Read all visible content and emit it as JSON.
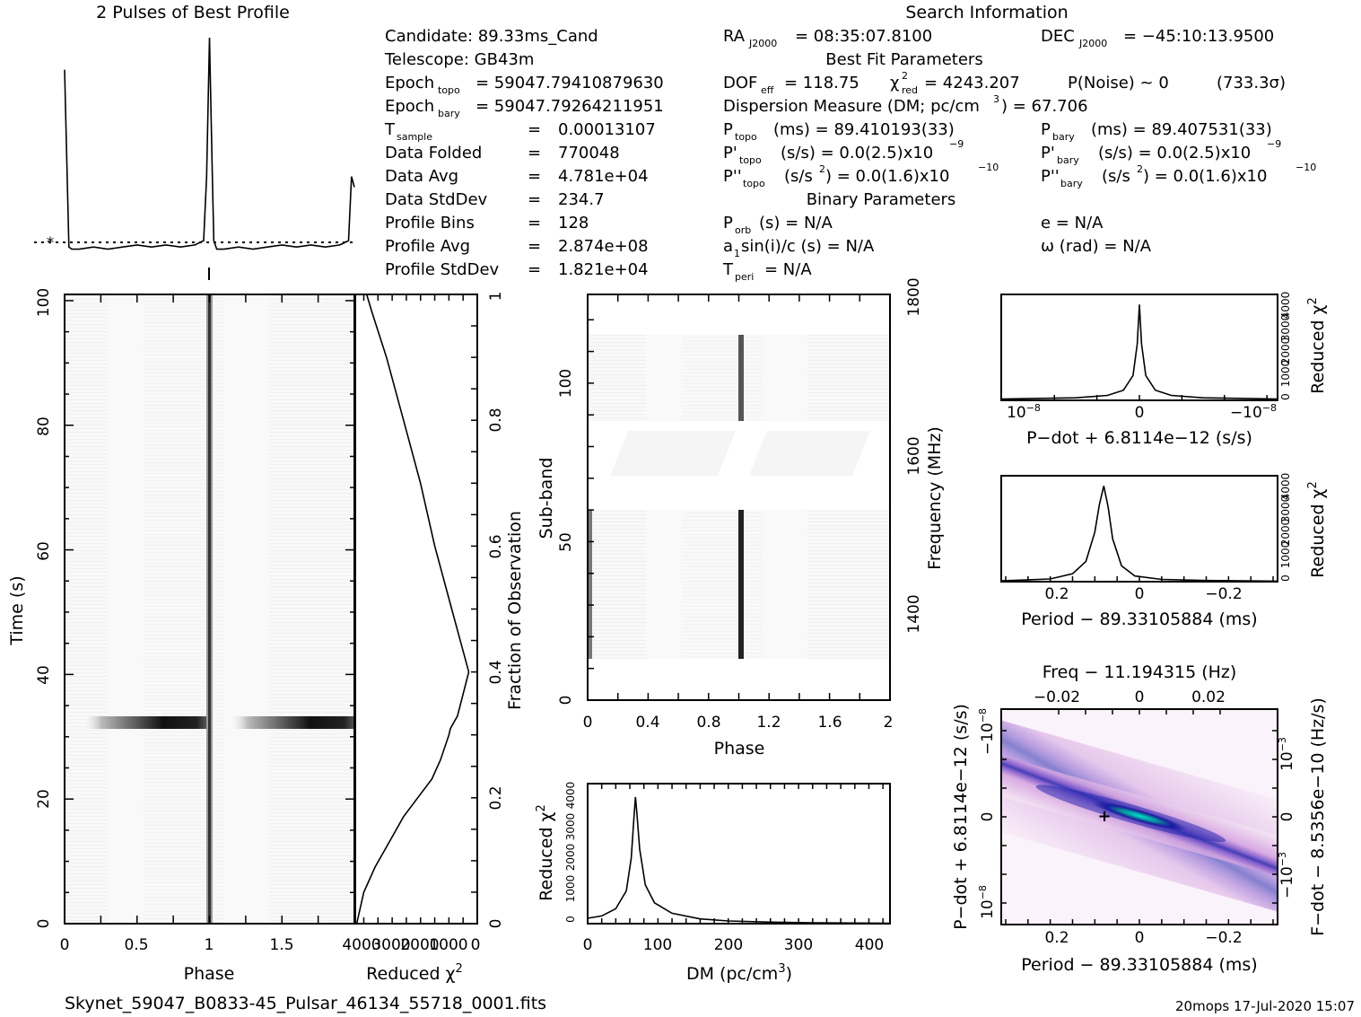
{
  "header": {
    "profile_title": "2 Pulses of Best Profile",
    "search_title": "Search Information",
    "best_fit_title": "Best Fit Parameters",
    "binary_title": "Binary Parameters"
  },
  "info": {
    "candidate": "Candidate:  89.33ms_Cand",
    "telescope": "Telescope:  GB43m",
    "epoch_topo_lbl": "Epoch",
    "epoch_topo_sub": "topo",
    "epoch_topo_val": "= 59047.79410879630",
    "epoch_bary_lbl": "Epoch",
    "epoch_bary_sub": "bary",
    "epoch_bary_val": "= 59047.79264211951",
    "tsample_lbl": "T",
    "tsample_sub": "sample",
    "tsample_eq": "=",
    "tsample_val": "0.00013107",
    "data_folded_lbl": "Data Folded",
    "data_folded_eq": "=",
    "data_folded_val": "770048",
    "data_avg_lbl": "Data Avg",
    "data_avg_eq": "=",
    "data_avg_val": "4.781e+04",
    "data_std_lbl": "Data StdDev",
    "data_std_eq": "=",
    "data_std_val": "234.7",
    "prof_bins_lbl": "Profile Bins",
    "prof_bins_eq": "=",
    "prof_bins_val": "128",
    "prof_avg_lbl": "Profile Avg",
    "prof_avg_eq": "=",
    "prof_avg_val": "2.874e+08",
    "prof_std_lbl": "Profile StdDev",
    "prof_std_eq": "=",
    "prof_std_val": "1.821e+04",
    "ra_lbl": "RA",
    "ra_sub": "J2000",
    "ra_val": "= 08:35:07.8100",
    "dec_lbl": "DEC",
    "dec_sub": "J2000",
    "dec_val": "= −45:10:13.9500",
    "dof_lbl": "DOF",
    "dof_sub": "eff",
    "dof_val": "= 118.75",
    "chi_lbl": "χ",
    "chi_sup": "2",
    "chi_sub": "red",
    "chi_val": "= 4243.207",
    "pnoise": "P(Noise) ~ 0",
    "sigma": "(733.3σ)",
    "dm_line": "Dispersion Measure (DM; pc/cm",
    "dm_sup": "3",
    "dm_val": ") = 67.706",
    "ptopo_lbl": "P",
    "ptopo_sub": "topo",
    "ptopo_val": "(ms)  =  89.410193(33)",
    "pbary_lbl": "P",
    "pbary_sub": "bary",
    "pbary_val": "(ms)  =  89.407531(33)",
    "pdtopo_lbl": "P'",
    "pdtopo_sub": "topo",
    "pdtopo_val": "(s/s) = 0.0(2.5)x10",
    "pdtopo_exp": "−9",
    "pdbary_lbl": "P'",
    "pdbary_sub": "bary",
    "pdbary_val": "(s/s) = 0.0(2.5)x10",
    "pdbary_exp": "−9",
    "pddtopo_lbl": "P''",
    "pddtopo_sub": "topo",
    "pddtopo_val": "(s/s",
    "pddtopo_sup": "2",
    "pddtopo_val2": ") = 0.0(1.6)x10",
    "pddtopo_exp": "−10",
    "pddbary_lbl": "P''",
    "pddbary_sub": "bary",
    "pddbary_val": "(s/s",
    "pddbary_sup": "2",
    "pddbary_val2": ") = 0.0(1.6)x10",
    "pddbary_exp": "−10",
    "porb_lbl": "P",
    "porb_sub": "orb",
    "porb_val": "(s) = N/A",
    "e_val": "e = N/A",
    "a1_lbl": "a",
    "a1_sub": "1",
    "a1_val": "sin(i)/c (s) = N/A",
    "omega_val": "ω (rad) = N/A",
    "tperi_lbl": "T",
    "tperi_sub": "peri",
    "tperi_val": "= N/A"
  },
  "footer": {
    "filename": "Skynet_59047_B0833-45_Pulsar_46134_55718_0001.fits",
    "stamp": "20mops  17-Jul-2020 15:07"
  },
  "chart_data": [
    {
      "type": "line",
      "panel": "profile",
      "title": "2 Pulses of Best Profile",
      "x": [
        0.0,
        0.03,
        0.05,
        0.1,
        0.2,
        0.3,
        0.4,
        0.5,
        0.6,
        0.7,
        0.8,
        0.9,
        0.96,
        0.98,
        1.0,
        1.02,
        1.03,
        1.05,
        1.1,
        1.2,
        1.3,
        1.4,
        1.5,
        1.6,
        1.7,
        1.8,
        1.9,
        1.96,
        1.98,
        2.0
      ],
      "y_relative": [
        0.85,
        0.02,
        0.01,
        0.01,
        0.02,
        0.01,
        0.02,
        0.03,
        0.02,
        0.03,
        0.02,
        0.03,
        0.05,
        0.35,
        1.0,
        0.35,
        0.05,
        0.01,
        0.01,
        0.02,
        0.01,
        0.02,
        0.03,
        0.02,
        0.03,
        0.02,
        0.03,
        0.05,
        0.35,
        0.3
      ]
    },
    {
      "type": "heatmap",
      "panel": "time-phase",
      "xlabel": "Phase",
      "ylabel": "Time (s)",
      "xticks": [
        "0",
        "0.5",
        "1",
        "1.5"
      ],
      "yticks": [
        "0",
        "20",
        "40",
        "60",
        "80",
        "100"
      ],
      "xlim": [
        0,
        2
      ],
      "ylim": [
        0,
        101
      ],
      "dark_band_time": 32,
      "pulse_phase": [
        1.0
      ]
    },
    {
      "type": "line",
      "panel": "reduced-chi2-vs-fraction",
      "xlabel": "Reduced χ2",
      "ylabel": "Fraction of Observation",
      "xticks": [
        "4000",
        "3000",
        "2000",
        "1000",
        "0"
      ],
      "yticks": [
        "0",
        "0.2",
        "0.4",
        "0.6",
        "0.8",
        "1"
      ],
      "xlim": [
        4300,
        0
      ],
      "ylim": [
        0,
        1
      ],
      "x": [
        3900,
        3700,
        3200,
        2600,
        2000,
        1500,
        900,
        300,
        700,
        950,
        1000,
        1300,
        1600,
        2100,
        2600,
        3100,
        3600,
        4000,
        4250
      ],
      "y": [
        1.0,
        0.97,
        0.9,
        0.8,
        0.7,
        0.6,
        0.5,
        0.4,
        0.33,
        0.31,
        0.3,
        0.26,
        0.23,
        0.2,
        0.17,
        0.13,
        0.09,
        0.05,
        0.0
      ]
    },
    {
      "type": "heatmap",
      "panel": "subband-phase",
      "xlabel": "Phase",
      "ylabel": "Sub-band",
      "y2label": "Frequency (MHz)",
      "xticks": [
        "0",
        "0.4",
        "0.8",
        "1.2",
        "1.6",
        "2"
      ],
      "yticks": [
        "0",
        "50",
        "100"
      ],
      "y2ticks": [
        "1400",
        "1600",
        "1800"
      ],
      "xlim": [
        0,
        2
      ],
      "ylim": [
        0,
        128
      ],
      "pulse_phase": 1.02,
      "blank_subbands": [
        59,
        88
      ]
    },
    {
      "type": "line",
      "panel": "dm-curve",
      "xlabel": "DM (pc/cm3)",
      "ylabel": "Reduced χ2",
      "xticks": [
        "0",
        "100",
        "200",
        "300",
        "400"
      ],
      "yticks": [
        "0",
        "1000",
        "2000",
        "3000",
        "4000"
      ],
      "xlim": [
        0,
        430
      ],
      "ylim": [
        0,
        4700
      ],
      "x": [
        0,
        20,
        40,
        55,
        62,
        66,
        68,
        70,
        74,
        82,
        95,
        120,
        160,
        200,
        260,
        320,
        380,
        430
      ],
      "y": [
        180,
        260,
        500,
        1100,
        2200,
        3600,
        4250,
        3700,
        2500,
        1300,
        700,
        350,
        160,
        90,
        50,
        30,
        20,
        15
      ]
    },
    {
      "type": "line",
      "panel": "pdot-curve",
      "xlabel": "P−dot + 6.8114e−12 (s/s)",
      "ylabel": "Reduced χ2",
      "xticks": [
        "10−8",
        "0",
        "−10−8"
      ],
      "yticks": [
        "0",
        "1000",
        "2000",
        "3000",
        "4000"
      ],
      "xlim": [
        1.3e-08,
        -1.3e-08
      ],
      "ylim": [
        0,
        4700
      ],
      "x": [
        1.3e-08,
        6e-09,
        3e-09,
        1.5e-09,
        6e-10,
        2e-10,
        0,
        -2e-10,
        -6e-10,
        -1.5e-09,
        -3e-09,
        -6e-09,
        -1.3e-08
      ],
      "y": [
        60,
        110,
        220,
        450,
        1100,
        2500,
        4250,
        2500,
        1100,
        450,
        220,
        110,
        60
      ]
    },
    {
      "type": "line",
      "panel": "period-curve",
      "xlabel": "Period − 89.33105884 (ms)",
      "ylabel": "Reduced χ2",
      "xticks": [
        "0.2",
        "0",
        "−0.2"
      ],
      "yticks": [
        "0",
        "1000",
        "2000",
        "3000",
        "4000"
      ],
      "xlim": [
        0.31,
        -0.31
      ],
      "ylim": [
        0,
        4700
      ],
      "x": [
        0.31,
        0.2,
        0.15,
        0.12,
        0.1,
        0.09,
        0.08,
        0.07,
        0.06,
        0.04,
        0.01,
        -0.05,
        -0.15,
        -0.31
      ],
      "y": [
        35,
        120,
        350,
        900,
        2200,
        3400,
        4250,
        3300,
        1900,
        700,
        250,
        100,
        50,
        25
      ]
    },
    {
      "type": "heatmap",
      "panel": "p-pdot",
      "title": "Freq − 11.194315 (Hz)",
      "xlabel": "Period − 89.33105884 (ms)",
      "ylabel": "P−dot + 6.8114e−12 (s/s)",
      "y2label": "F−dot − 8.5356e−10 (Hz/s)",
      "xticks": [
        "0.2",
        "0",
        "−0.2"
      ],
      "x2ticks": [
        "−0.02",
        "0",
        "0.02"
      ],
      "yticks": [
        "10−8",
        "0",
        "−10−8"
      ],
      "y2ticks": [
        "−10−3",
        "0",
        "10−3"
      ],
      "xlim": [
        0.31,
        -0.31
      ],
      "ylim": [
        -1.4e-08,
        1.4e-08
      ],
      "best_period": 0.08,
      "best_pdot": 0
    }
  ]
}
